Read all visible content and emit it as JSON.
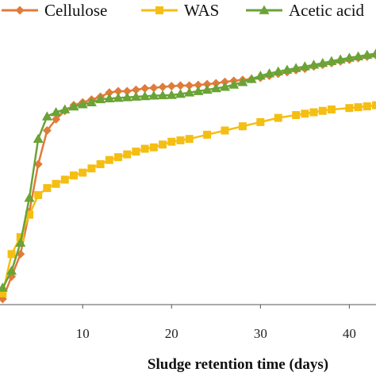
{
  "chart_data": {
    "type": "line",
    "xlabel": "Sludge retention time (days)",
    "ylabel": "",
    "xlim": [
      0.7,
      43
    ],
    "ylim": [
      0,
      100
    ],
    "x_ticks": [
      10,
      20,
      30,
      40
    ],
    "grid": false,
    "legend_position": "top",
    "series": [
      {
        "name": "Cellulose",
        "color": "#E07B39",
        "marker": "diamond",
        "x": [
          1,
          2,
          3,
          4,
          5,
          6,
          7,
          8,
          9,
          10,
          11,
          12,
          13,
          14,
          15,
          16,
          17,
          18,
          19,
          20,
          21,
          22,
          23,
          24,
          25,
          26,
          27,
          28,
          29,
          30,
          31,
          32,
          33,
          34,
          35,
          36,
          37,
          38,
          39,
          40,
          41,
          42,
          43
        ],
        "y": [
          2,
          10,
          18,
          33,
          50,
          62,
          66,
          69,
          71,
          72,
          73,
          74,
          75.5,
          76,
          76,
          76.5,
          77,
          77.2,
          77.5,
          77.8,
          78,
          78,
          78.2,
          78.5,
          78.8,
          79.3,
          79.7,
          80,
          80.3,
          80.8,
          81.5,
          82.2,
          82.8,
          83.5,
          84,
          84.8,
          85.4,
          86,
          86.6,
          87.2,
          87.8,
          88.3,
          88.8
        ]
      },
      {
        "name": "WAS",
        "color": "#F5BE13",
        "marker": "square",
        "x": [
          1,
          2,
          3,
          4,
          5,
          6,
          7,
          8,
          9,
          10,
          11,
          12,
          13,
          14,
          15,
          16,
          17,
          18,
          19,
          20,
          21,
          22,
          24,
          26,
          28,
          30,
          32,
          34,
          35,
          36,
          37,
          38,
          40,
          41,
          42,
          43
        ],
        "y": [
          4,
          18,
          24,
          32,
          39,
          41.5,
          43,
          44.5,
          46,
          47,
          48.5,
          50,
          51.5,
          52.5,
          53.5,
          54.5,
          55.5,
          56,
          57,
          58,
          58.5,
          59,
          60.5,
          62,
          63.5,
          65,
          66.5,
          67.5,
          68,
          68.5,
          69,
          69.5,
          70,
          70.3,
          70.6,
          71
        ]
      },
      {
        "name": "Acetic acid",
        "color": "#6AA336",
        "marker": "triangle",
        "x": [
          1,
          2,
          3,
          4,
          5,
          6,
          7,
          8,
          9,
          10,
          11,
          12,
          13,
          14,
          15,
          16,
          17,
          18,
          19,
          20,
          21,
          22,
          23,
          24,
          25,
          26,
          27,
          28,
          29,
          30,
          31,
          32,
          33,
          34,
          35,
          36,
          37,
          38,
          39,
          40,
          41,
          42,
          43
        ],
        "y": [
          6,
          12,
          22,
          38,
          59,
          67,
          68.5,
          69.5,
          70.5,
          71.3,
          72,
          73.1,
          73.4,
          73.6,
          73.8,
          74,
          74.2,
          74.4,
          74.5,
          74.6,
          75,
          75.5,
          76,
          76.5,
          77,
          77.5,
          78.3,
          79.2,
          80.3,
          81.5,
          82.3,
          83,
          83.6,
          84.2,
          84.8,
          85.4,
          86,
          86.7,
          87.3,
          87.9,
          88.4,
          88.9,
          89.4
        ]
      }
    ]
  }
}
